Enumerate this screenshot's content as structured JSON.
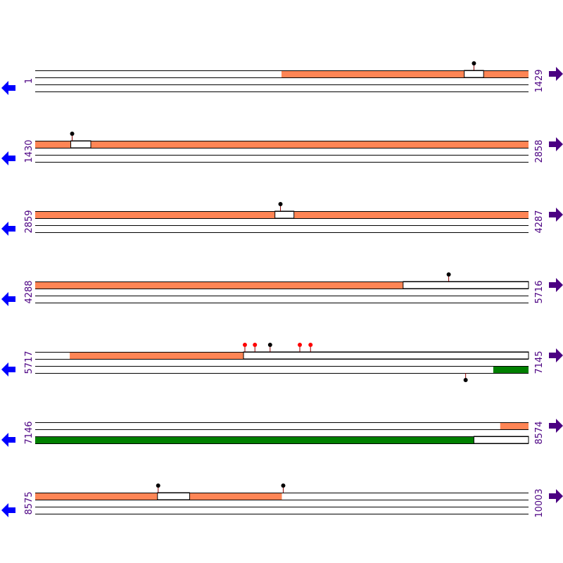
{
  "colors": {
    "forward_feature": "#ff8555",
    "reverse_feature": "#008000",
    "strand_line": "#000000",
    "left_arrow": "#0000ff",
    "right_arrow": "#4b0082",
    "label": "#4b0082",
    "marker_black": "#000000",
    "marker_red": "#ff0000",
    "stem": "#8b0000"
  },
  "diagram": {
    "bp_per_row": 1429,
    "rows": [
      {
        "start_label": "1",
        "end_label": "1429",
        "start": 1,
        "end": 1429,
        "forward_features": [
          [
            714,
            1243
          ],
          [
            1299,
            1429
          ]
        ],
        "forward_gaps": [
          [
            1243,
            1299
          ]
        ],
        "reverse_features": [],
        "reverse_gaps": [],
        "markers": [
          {
            "pos": 1271,
            "strand": "top",
            "color": "black"
          }
        ]
      },
      {
        "start_label": "1430",
        "end_label": "2858",
        "start": 1430,
        "end": 2858,
        "forward_features": [
          [
            1430,
            1533
          ],
          [
            1591,
            2858
          ]
        ],
        "forward_gaps": [
          [
            1533,
            1591
          ]
        ],
        "reverse_features": [],
        "reverse_gaps": [],
        "markers": [
          {
            "pos": 1537,
            "strand": "top",
            "color": "black"
          }
        ]
      },
      {
        "start_label": "2859",
        "end_label": "4287",
        "start": 2859,
        "end": 4287,
        "forward_features": [
          [
            2859,
            3553
          ],
          [
            3608,
            4287
          ]
        ],
        "forward_gaps": [
          [
            3553,
            3608
          ]
        ],
        "reverse_features": [],
        "reverse_gaps": [],
        "markers": [
          {
            "pos": 3569,
            "strand": "top",
            "color": "black"
          }
        ]
      },
      {
        "start_label": "4288",
        "end_label": "5716",
        "start": 4288,
        "end": 5716,
        "forward_features": [
          [
            4288,
            5353
          ]
        ],
        "forward_gaps": [
          [
            5353,
            5716
          ]
        ],
        "reverse_features": [],
        "reverse_gaps": [],
        "markers": [
          {
            "pos": 5485,
            "strand": "top",
            "color": "black"
          }
        ]
      },
      {
        "start_label": "5717",
        "end_label": "7145",
        "start": 5717,
        "end": 7145,
        "forward_features": [
          [
            5817,
            6320
          ]
        ],
        "forward_gaps": [
          [
            6320,
            7145
          ]
        ],
        "reverse_features": [
          [
            7043,
            7145
          ]
        ],
        "reverse_gaps": [],
        "markers": [
          {
            "pos": 6324,
            "strand": "top",
            "color": "red"
          },
          {
            "pos": 6353,
            "strand": "top",
            "color": "red"
          },
          {
            "pos": 6397,
            "strand": "top",
            "color": "black"
          },
          {
            "pos": 6483,
            "strand": "top",
            "color": "red"
          },
          {
            "pos": 6514,
            "strand": "top",
            "color": "red"
          },
          {
            "pos": 6963,
            "strand": "bottom",
            "color": "black"
          }
        ]
      },
      {
        "start_label": "7146",
        "end_label": "8574",
        "start": 7146,
        "end": 8574,
        "forward_features": [
          [
            8492,
            8574
          ]
        ],
        "forward_gaps": [],
        "reverse_features": [
          [
            7146,
            8416
          ]
        ],
        "reverse_gaps": [
          [
            8416,
            8574
          ]
        ],
        "markers": []
      },
      {
        "start_label": "8575",
        "end_label": "10003",
        "start": 8575,
        "end": 10003,
        "forward_features": [
          [
            8575,
            8929
          ],
          [
            9022,
            9289
          ]
        ],
        "forward_gaps": [
          [
            8929,
            9022
          ]
        ],
        "reverse_features": [],
        "reverse_gaps": [],
        "markers": [
          {
            "pos": 8931,
            "strand": "top",
            "color": "black"
          },
          {
            "pos": 9293,
            "strand": "top",
            "color": "black"
          }
        ]
      }
    ]
  }
}
